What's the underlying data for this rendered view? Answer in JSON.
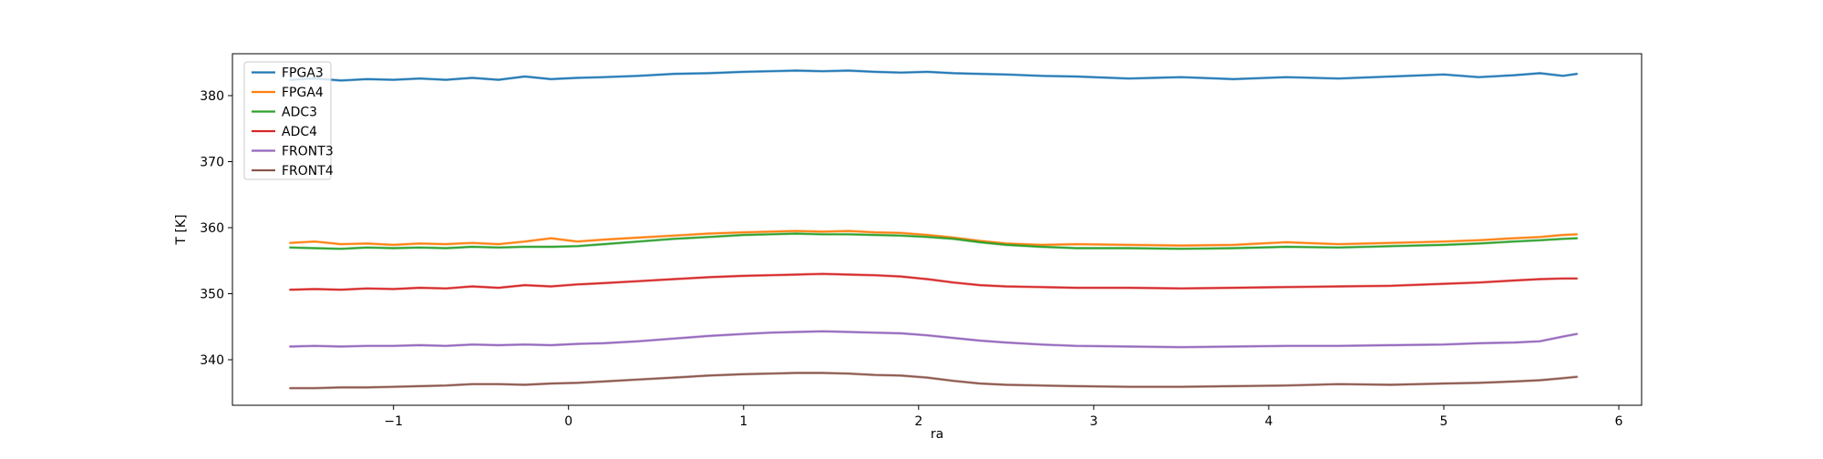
{
  "figure": {
    "background": "#ffffff"
  },
  "chart_data": {
    "type": "line",
    "title": "",
    "xlabel": "ra",
    "ylabel": "T [K]",
    "xlim": [
      -1.92,
      6.13
    ],
    "ylim": [
      333.1,
      386.35
    ],
    "xticks": [
      -1,
      0,
      1,
      2,
      3,
      4,
      5,
      6
    ],
    "yticks": [
      340,
      350,
      360,
      370,
      380
    ],
    "grid": false,
    "legend_position": "upper left",
    "frame_color": "#000000",
    "legend_border_color": "#cccccc",
    "x": [
      -1.59,
      -1.45,
      -1.3,
      -1.15,
      -1.0,
      -0.85,
      -0.7,
      -0.55,
      -0.4,
      -0.25,
      -0.1,
      0.05,
      0.2,
      0.4,
      0.6,
      0.8,
      1.0,
      1.15,
      1.3,
      1.45,
      1.6,
      1.75,
      1.9,
      2.05,
      2.2,
      2.35,
      2.5,
      2.7,
      2.9,
      3.2,
      3.5,
      3.8,
      4.1,
      4.4,
      4.7,
      5.0,
      5.2,
      5.4,
      5.55,
      5.68,
      5.76
    ],
    "series": [
      {
        "name": "FPGA3",
        "color": "#1f77b4",
        "y": [
          382.4,
          382.6,
          382.3,
          382.5,
          382.4,
          382.6,
          382.4,
          382.7,
          382.4,
          382.9,
          382.5,
          382.7,
          382.8,
          383.0,
          383.3,
          383.4,
          383.6,
          383.7,
          383.8,
          383.7,
          383.8,
          383.6,
          383.5,
          383.6,
          383.4,
          383.3,
          383.2,
          383.0,
          382.9,
          382.6,
          382.8,
          382.5,
          382.8,
          382.6,
          382.9,
          383.2,
          382.8,
          383.1,
          383.4,
          383.0,
          383.3
        ]
      },
      {
        "name": "FPGA4",
        "color": "#ff7f0e",
        "y": [
          357.7,
          357.9,
          357.5,
          357.6,
          357.4,
          357.6,
          357.5,
          357.7,
          357.5,
          357.9,
          358.4,
          357.9,
          358.2,
          358.5,
          358.8,
          359.1,
          359.3,
          359.4,
          359.5,
          359.4,
          359.5,
          359.3,
          359.2,
          358.9,
          358.5,
          358.0,
          357.6,
          357.4,
          357.5,
          357.4,
          357.3,
          357.4,
          357.8,
          357.5,
          357.7,
          357.9,
          358.1,
          358.4,
          358.6,
          358.9,
          359.0
        ]
      },
      {
        "name": "ADC3",
        "color": "#2ca02c",
        "y": [
          357.0,
          356.9,
          356.8,
          357.0,
          356.9,
          357.0,
          356.9,
          357.1,
          357.0,
          357.1,
          357.1,
          357.2,
          357.5,
          357.9,
          358.3,
          358.6,
          358.9,
          359.0,
          359.1,
          359.0,
          359.0,
          358.9,
          358.8,
          358.6,
          358.3,
          357.8,
          357.4,
          357.1,
          356.9,
          356.9,
          356.8,
          356.9,
          357.1,
          357.0,
          357.2,
          357.4,
          357.6,
          357.9,
          358.1,
          358.3,
          358.4
        ]
      },
      {
        "name": "ADC4",
        "color": "#d62728",
        "y": [
          350.6,
          350.7,
          350.6,
          350.8,
          350.7,
          350.9,
          350.8,
          351.1,
          350.9,
          351.3,
          351.1,
          351.4,
          351.6,
          351.9,
          352.2,
          352.5,
          352.7,
          352.8,
          352.9,
          353.0,
          352.9,
          352.8,
          352.6,
          352.2,
          351.7,
          351.3,
          351.1,
          351.0,
          350.9,
          350.9,
          350.8,
          350.9,
          351.0,
          351.1,
          351.2,
          351.5,
          351.7,
          352.0,
          352.2,
          352.3,
          352.3
        ]
      },
      {
        "name": "FRONT3",
        "color": "#9467bd",
        "y": [
          342.0,
          342.1,
          342.0,
          342.1,
          342.1,
          342.2,
          342.1,
          342.3,
          342.2,
          342.3,
          342.2,
          342.4,
          342.5,
          342.8,
          343.2,
          343.6,
          343.9,
          344.1,
          344.2,
          344.3,
          344.2,
          344.1,
          344.0,
          343.7,
          343.3,
          342.9,
          342.6,
          342.3,
          342.1,
          342.0,
          341.9,
          342.0,
          342.1,
          342.1,
          342.2,
          342.3,
          342.5,
          342.6,
          342.8,
          343.5,
          343.9
        ]
      },
      {
        "name": "FRONT4",
        "color": "#8c564b",
        "y": [
          335.7,
          335.7,
          335.8,
          335.8,
          335.9,
          336.0,
          336.1,
          336.3,
          336.3,
          336.2,
          336.4,
          336.5,
          336.7,
          337.0,
          337.3,
          337.6,
          337.8,
          337.9,
          338.0,
          338.0,
          337.9,
          337.7,
          337.6,
          337.3,
          336.8,
          336.4,
          336.2,
          336.1,
          336.0,
          335.9,
          335.9,
          336.0,
          336.1,
          336.3,
          336.2,
          336.4,
          336.5,
          336.7,
          336.9,
          337.2,
          337.4
        ]
      }
    ]
  }
}
